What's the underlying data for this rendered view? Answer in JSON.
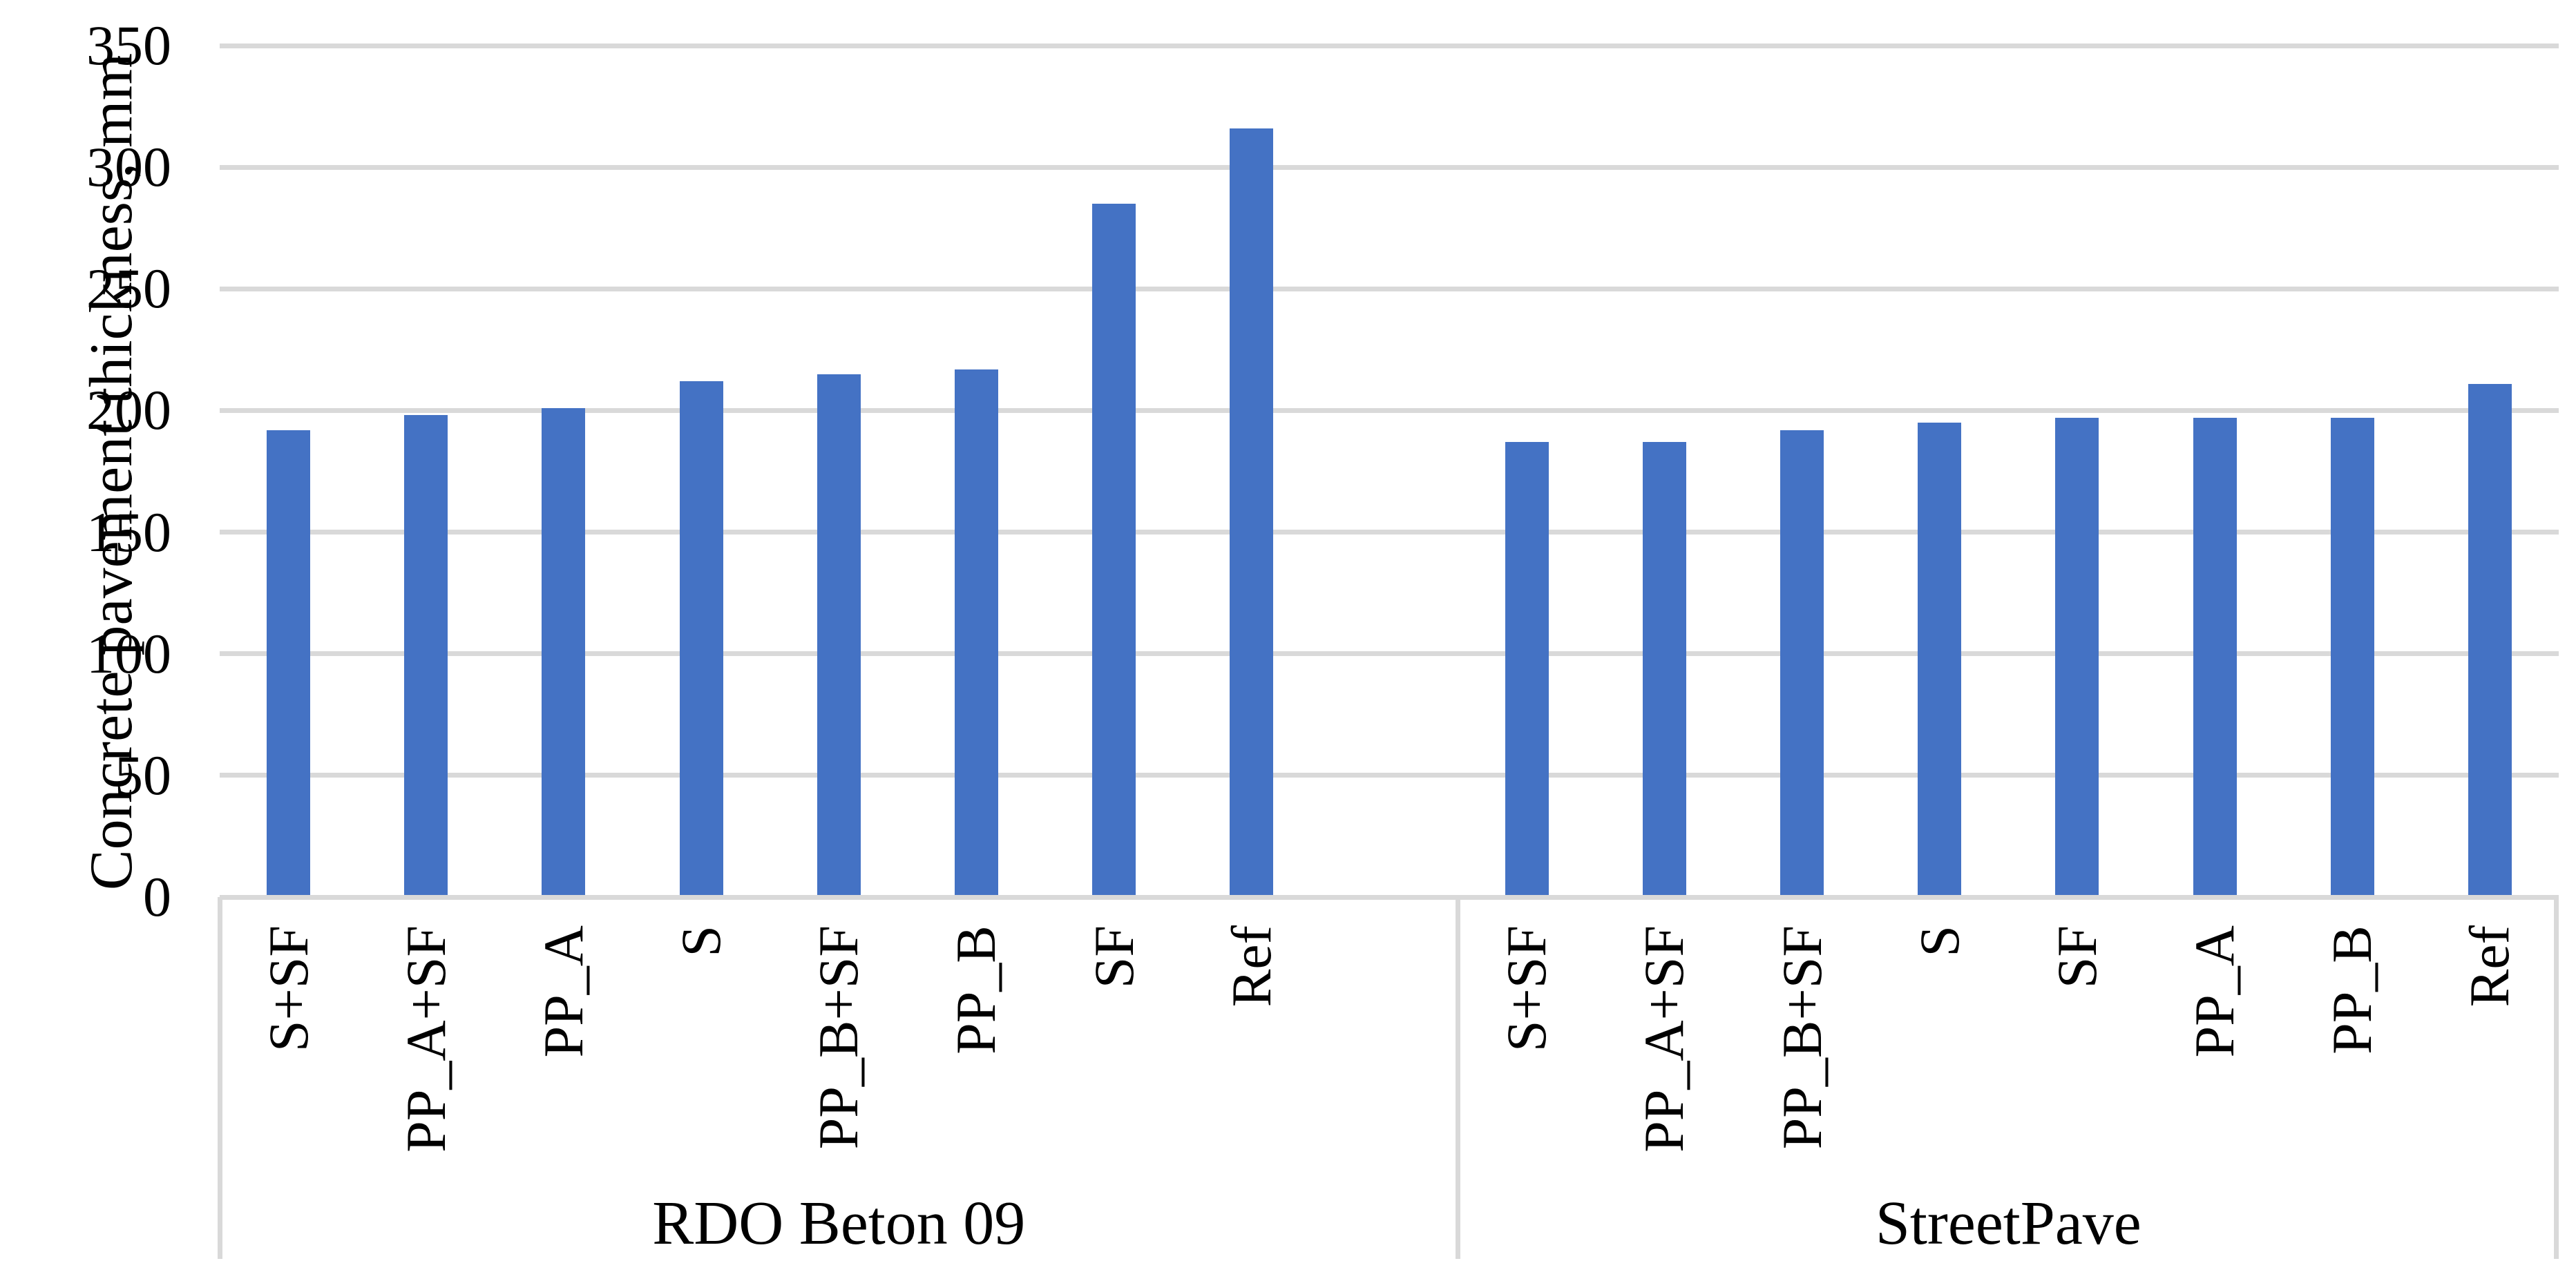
{
  "chart_data": {
    "type": "bar",
    "title": "",
    "ylabel": "Concrete pavement thickness, mm",
    "xlabel": "",
    "ylim": [
      0,
      350
    ],
    "ytick_step": 50,
    "yticks": [
      0,
      50,
      100,
      150,
      200,
      250,
      300,
      350
    ],
    "grid": "horizontal-gridlines-on",
    "legend": "none",
    "bar_color": "#4472C4",
    "gridline_color": "#D9D9D9",
    "axis_line_color": "#D9D9D9",
    "text_color": "#000000",
    "groups": [
      {
        "label": "RDO Beton 09",
        "categories": [
          "S+SF",
          "PP_A+SF",
          "PP_A",
          "S",
          "PP_B+SF",
          "PP_B",
          "SF",
          "Ref"
        ],
        "values": [
          192,
          198,
          201,
          212,
          215,
          217,
          285,
          316
        ]
      },
      {
        "label": "StreetPave",
        "categories": [
          "S+SF",
          "PP_A+SF",
          "PP_B+SF",
          "S",
          "SF",
          "PP_A",
          "PP_B",
          "Ref"
        ],
        "values": [
          187,
          187,
          192,
          195,
          197,
          197,
          197,
          211
        ]
      }
    ]
  }
}
